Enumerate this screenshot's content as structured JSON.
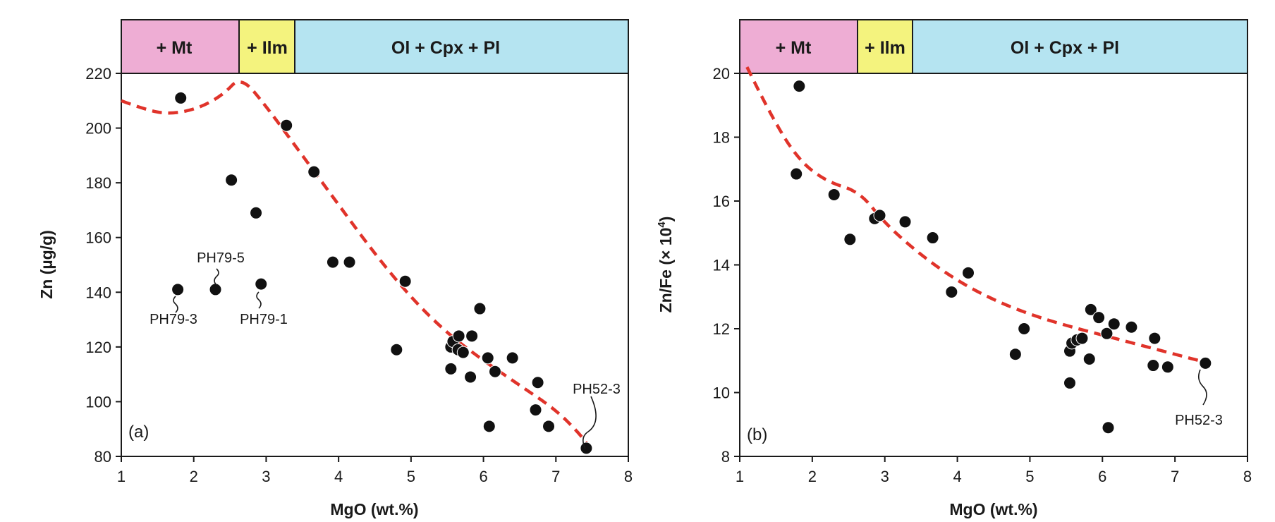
{
  "colors": {
    "mt_band": "#eeadd4",
    "ilm_band": "#f4f37e",
    "ol_band": "#b5e4f1",
    "curve": "#e0332a",
    "point": "#111111",
    "axis": "#1a1a1a"
  },
  "chart_data": [
    {
      "type": "scatter",
      "panel_label": "(a)",
      "xlabel": "MgO (wt.%)",
      "ylabel": "Zn (µg/g)",
      "xlim": [
        1,
        8
      ],
      "ylim": [
        80,
        220
      ],
      "xticks": [
        1,
        2,
        3,
        4,
        5,
        6,
        7,
        8
      ],
      "yticks": [
        80,
        100,
        120,
        140,
        160,
        180,
        200,
        220
      ],
      "bands": [
        {
          "label": "+ Mt",
          "from": 1,
          "to": 2.65,
          "color": "#eeadd4"
        },
        {
          "label": "+ Ilm",
          "from": 2.65,
          "to": 3.42,
          "color": "#f4f37e"
        },
        {
          "label": "Ol + Cpx + Pl",
          "from": 3.42,
          "to": 8,
          "color": "#b5e4f1"
        }
      ],
      "points": [
        {
          "x": 1.82,
          "y": 211
        },
        {
          "x": 3.28,
          "y": 201
        },
        {
          "x": 2.52,
          "y": 181
        },
        {
          "x": 3.66,
          "y": 184
        },
        {
          "x": 2.86,
          "y": 169
        },
        {
          "x": 3.92,
          "y": 151
        },
        {
          "x": 4.15,
          "y": 151
        },
        {
          "x": 1.78,
          "y": 141
        },
        {
          "x": 2.3,
          "y": 141
        },
        {
          "x": 2.93,
          "y": 143
        },
        {
          "x": 4.92,
          "y": 144
        },
        {
          "x": 4.8,
          "y": 119
        },
        {
          "x": 5.95,
          "y": 134
        },
        {
          "x": 5.55,
          "y": 120
        },
        {
          "x": 5.58,
          "y": 122
        },
        {
          "x": 5.65,
          "y": 119
        },
        {
          "x": 5.66,
          "y": 124
        },
        {
          "x": 5.72,
          "y": 118
        },
        {
          "x": 5.84,
          "y": 124
        },
        {
          "x": 5.55,
          "y": 112
        },
        {
          "x": 5.82,
          "y": 109
        },
        {
          "x": 6.06,
          "y": 116
        },
        {
          "x": 6.16,
          "y": 111
        },
        {
          "x": 6.4,
          "y": 116
        },
        {
          "x": 6.08,
          "y": 91
        },
        {
          "x": 6.75,
          "y": 107
        },
        {
          "x": 6.72,
          "y": 97
        },
        {
          "x": 6.9,
          "y": 91
        },
        {
          "x": 7.42,
          "y": 83
        }
      ],
      "curve": [
        {
          "x": 1,
          "y": 210
        },
        {
          "x": 1.3,
          "y": 207
        },
        {
          "x": 1.65,
          "y": 205
        },
        {
          "x": 2.05,
          "y": 207
        },
        {
          "x": 2.4,
          "y": 212
        },
        {
          "x": 2.65,
          "y": 219
        },
        {
          "x": 3,
          "y": 208
        },
        {
          "x": 3.5,
          "y": 190
        },
        {
          "x": 4,
          "y": 172
        },
        {
          "x": 4.5,
          "y": 154
        },
        {
          "x": 5,
          "y": 138
        },
        {
          "x": 5.5,
          "y": 125
        },
        {
          "x": 6,
          "y": 115
        },
        {
          "x": 6.5,
          "y": 106
        },
        {
          "x": 7,
          "y": 97
        },
        {
          "x": 7.3,
          "y": 89
        },
        {
          "x": 7.42,
          "y": 85
        }
      ],
      "annotations": [
        {
          "text": "PH79-5",
          "x": 2.3,
          "y": 141
        },
        {
          "text": "PH79-3",
          "x": 1.78,
          "y": 141
        },
        {
          "text": "PH79-1",
          "x": 2.93,
          "y": 143
        },
        {
          "text": "PH52-3",
          "x": 7.42,
          "y": 83
        }
      ]
    },
    {
      "type": "scatter",
      "panel_label": "(b)",
      "xlabel": "MgO (wt.%)",
      "ylabel": "Zn/Fe (× 10",
      "ylabel_exp": "4",
      "ylabel_end": ")",
      "xlim": [
        1,
        8
      ],
      "ylim": [
        8,
        20
      ],
      "xticks": [
        1,
        2,
        3,
        4,
        5,
        6,
        7,
        8
      ],
      "yticks": [
        8,
        10,
        12,
        14,
        16,
        18,
        20
      ],
      "bands": [
        {
          "label": "+ Mt",
          "from": 1,
          "to": 2.65,
          "color": "#eeadd4"
        },
        {
          "label": "+ Ilm",
          "from": 2.65,
          "to": 3.42,
          "color": "#f4f37e"
        },
        {
          "label": "Ol + Cpx + Pl",
          "from": 3.42,
          "to": 8,
          "color": "#b5e4f1"
        }
      ],
      "points": [
        {
          "x": 1.82,
          "y": 19.6
        },
        {
          "x": 1.78,
          "y": 16.85
        },
        {
          "x": 2.3,
          "y": 16.2
        },
        {
          "x": 2.52,
          "y": 14.8
        },
        {
          "x": 2.86,
          "y": 15.45
        },
        {
          "x": 2.93,
          "y": 15.55
        },
        {
          "x": 3.28,
          "y": 15.35
        },
        {
          "x": 3.66,
          "y": 14.85
        },
        {
          "x": 4.15,
          "y": 13.75
        },
        {
          "x": 3.92,
          "y": 13.15
        },
        {
          "x": 4.92,
          "y": 12.0
        },
        {
          "x": 4.8,
          "y": 11.2
        },
        {
          "x": 5.55,
          "y": 11.3
        },
        {
          "x": 5.58,
          "y": 11.55
        },
        {
          "x": 5.65,
          "y": 11.65
        },
        {
          "x": 5.72,
          "y": 11.7
        },
        {
          "x": 5.55,
          "y": 10.3
        },
        {
          "x": 5.82,
          "y": 11.05
        },
        {
          "x": 5.84,
          "y": 12.6
        },
        {
          "x": 5.95,
          "y": 12.35
        },
        {
          "x": 6.06,
          "y": 11.85
        },
        {
          "x": 6.16,
          "y": 12.15
        },
        {
          "x": 6.4,
          "y": 12.05
        },
        {
          "x": 6.08,
          "y": 8.9
        },
        {
          "x": 6.72,
          "y": 11.7
        },
        {
          "x": 6.7,
          "y": 10.85
        },
        {
          "x": 6.9,
          "y": 10.8
        },
        {
          "x": 7.42,
          "y": 10.92
        }
      ],
      "curve": [
        {
          "x": 1.1,
          "y": 20.2
        },
        {
          "x": 1.4,
          "y": 18.8
        },
        {
          "x": 1.8,
          "y": 17.3
        },
        {
          "x": 2.2,
          "y": 16.6
        },
        {
          "x": 2.65,
          "y": 16.3
        },
        {
          "x": 3,
          "y": 15.3
        },
        {
          "x": 3.5,
          "y": 14.3
        },
        {
          "x": 4,
          "y": 13.5
        },
        {
          "x": 4.5,
          "y": 12.9
        },
        {
          "x": 5,
          "y": 12.45
        },
        {
          "x": 5.5,
          "y": 12.1
        },
        {
          "x": 6,
          "y": 11.8
        },
        {
          "x": 6.5,
          "y": 11.5
        },
        {
          "x": 7,
          "y": 11.2
        },
        {
          "x": 7.42,
          "y": 10.95
        }
      ],
      "annotations": [
        {
          "text": "PH52-3",
          "x": 7.42,
          "y": 10.92
        }
      ]
    }
  ]
}
